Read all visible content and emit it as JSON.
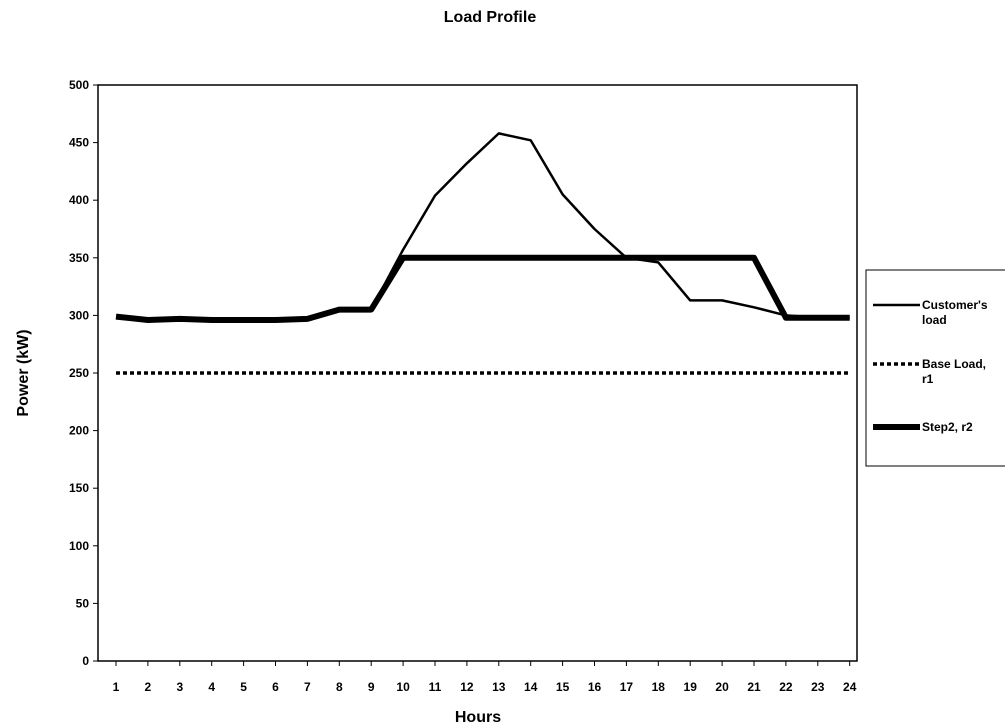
{
  "chart_data": {
    "type": "line",
    "title": "Load Profile",
    "xlabel": "Hours",
    "ylabel": "Power (kW)",
    "xlim": [
      1,
      24
    ],
    "ylim": [
      0,
      500
    ],
    "x_ticks": [
      "1",
      "2",
      "3",
      "4",
      "5",
      "6",
      "7",
      "8",
      "9",
      "10",
      "11",
      "12",
      "13",
      "14",
      "15",
      "16",
      "17",
      "18",
      "19",
      "20",
      "21",
      "22",
      "23",
      "24"
    ],
    "y_ticks": [
      0,
      50,
      100,
      150,
      200,
      250,
      300,
      350,
      400,
      450,
      500
    ],
    "grid": false,
    "legend_position": "right",
    "legend": [
      "Customer's load",
      "Base Load, r1",
      "Step2, r2"
    ],
    "series": [
      {
        "name": "Customer's load",
        "style": "solid-thin",
        "color": "#000000",
        "x": [
          1,
          2,
          3,
          4,
          5,
          6,
          7,
          8,
          9,
          10,
          11,
          12,
          13,
          14,
          15,
          16,
          17,
          18,
          19,
          20,
          21,
          22,
          23,
          24
        ],
        "y": [
          298,
          296,
          297,
          296,
          295,
          296,
          298,
          304,
          305,
          357,
          404,
          432,
          458,
          452,
          405,
          375,
          350,
          346,
          313,
          313,
          307,
          300,
          298,
          298
        ]
      },
      {
        "name": "Base Load, r1",
        "style": "dotted",
        "color": "#000000",
        "x": [
          1,
          2,
          3,
          4,
          5,
          6,
          7,
          8,
          9,
          10,
          11,
          12,
          13,
          14,
          15,
          16,
          17,
          18,
          19,
          20,
          21,
          22,
          23,
          24
        ],
        "y": [
          250,
          250,
          250,
          250,
          250,
          250,
          250,
          250,
          250,
          250,
          250,
          250,
          250,
          250,
          250,
          250,
          250,
          250,
          250,
          250,
          250,
          250,
          250,
          250
        ]
      },
      {
        "name": "Step2, r2",
        "style": "solid-thick",
        "color": "#000000",
        "x": [
          1,
          2,
          3,
          4,
          5,
          6,
          7,
          8,
          9,
          10,
          11,
          12,
          13,
          14,
          15,
          16,
          17,
          18,
          19,
          20,
          21,
          22,
          23,
          24
        ],
        "y": [
          299,
          296,
          297,
          296,
          296,
          296,
          297,
          305,
          305,
          350,
          350,
          350,
          350,
          350,
          350,
          350,
          350,
          350,
          350,
          350,
          350,
          298,
          298,
          298
        ]
      }
    ]
  }
}
